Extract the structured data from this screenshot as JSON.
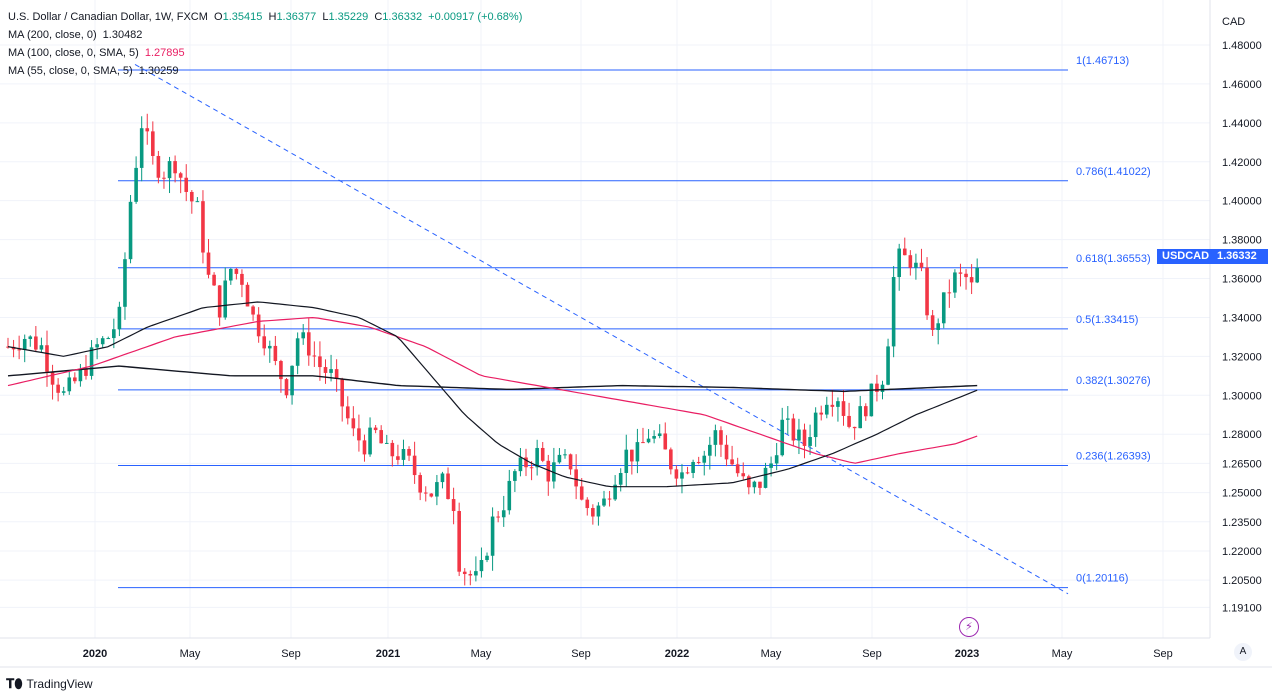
{
  "header": {
    "symbol_title": "U.S. Dollar / Canadian Dollar, 1W, FXCM",
    "ohlc": [
      {
        "label": "O",
        "value": "1.35415"
      },
      {
        "label": "H",
        "value": "1.36377"
      },
      {
        "label": "L",
        "value": "1.35229"
      },
      {
        "label": "C",
        "value": "1.36332"
      }
    ],
    "change": "+0.00917 (+0.68%)",
    "ma_lines": [
      {
        "label": "MA (200, close, 0)",
        "value": "1.30482",
        "color": "#131722"
      },
      {
        "label": "MA (100, close, 0, SMA, 5)",
        "value": "1.27895",
        "color": "#e91e63"
      },
      {
        "label": "MA (55, close, 0, SMA, 5)",
        "value": "1.30259",
        "color": "#131722"
      }
    ]
  },
  "price_scale": {
    "currency": "CAD",
    "ticks": [
      "1.48000",
      "1.46000",
      "1.44000",
      "1.42000",
      "1.40000",
      "1.38000",
      "1.36000",
      "1.34000",
      "1.32000",
      "1.30000",
      "1.28000",
      "1.26500",
      "1.25000",
      "1.23500",
      "1.22000",
      "1.20500",
      "1.19100"
    ]
  },
  "time_scale": {
    "ticks": [
      "2020",
      "May",
      "Sep",
      "2021",
      "May",
      "Sep",
      "2022",
      "May",
      "Sep",
      "2023",
      "May",
      "Sep"
    ]
  },
  "last_price_tag": {
    "name": "USDCAD",
    "price": "1.36332"
  },
  "footer": {
    "brand": "TradingView",
    "corner_button": "A"
  },
  "colors": {
    "up": "#089981",
    "down": "#f23645",
    "fib": "#2962ff",
    "ma100": "#e91e63",
    "ma_dark": "#131722"
  },
  "chart_data": {
    "type": "candlestick",
    "title": "U.S. Dollar / Canadian Dollar, 1W, FXCM",
    "ylim": [
      1.185,
      1.49
    ],
    "fibonacci": [
      {
        "label": "1(1.46713)",
        "value": 1.46713
      },
      {
        "label": "0.786(1.41022)",
        "value": 1.41022
      },
      {
        "label": "0.618(1.36553)",
        "value": 1.36553
      },
      {
        "label": "0.5(1.33415)",
        "value": 1.33415
      },
      {
        "label": "0.382(1.30276)",
        "value": 1.30276
      },
      {
        "label": "0.236(1.26393)",
        "value": 1.26393
      },
      {
        "label": "0(1.20116)",
        "value": 1.20116
      }
    ],
    "trendline": {
      "from_week": 12,
      "from_value": 1.467,
      "to_week": 167,
      "to_value": 1.201
    },
    "price_path": [
      [
        0,
        1.325
      ],
      [
        3,
        1.33
      ],
      [
        6,
        1.325
      ],
      [
        8,
        1.31
      ],
      [
        10,
        1.3
      ],
      [
        13,
        1.31
      ],
      [
        16,
        1.325
      ],
      [
        18,
        1.33
      ],
      [
        20,
        1.34
      ],
      [
        22,
        1.4
      ],
      [
        24,
        1.44
      ],
      [
        26,
        1.42
      ],
      [
        28,
        1.415
      ],
      [
        30,
        1.42
      ],
      [
        32,
        1.405
      ],
      [
        34,
        1.395
      ],
      [
        36,
        1.36
      ],
      [
        38,
        1.345
      ],
      [
        40,
        1.365
      ],
      [
        42,
        1.36
      ],
      [
        44,
        1.34
      ],
      [
        46,
        1.33
      ],
      [
        48,
        1.315
      ],
      [
        50,
        1.305
      ],
      [
        52,
        1.33
      ],
      [
        54,
        1.325
      ],
      [
        56,
        1.315
      ],
      [
        58,
        1.31
      ],
      [
        60,
        1.295
      ],
      [
        62,
        1.28
      ],
      [
        64,
        1.275
      ],
      [
        66,
        1.28
      ],
      [
        68,
        1.27
      ],
      [
        70,
        1.27
      ],
      [
        72,
        1.265
      ],
      [
        74,
        1.255
      ],
      [
        76,
        1.25
      ],
      [
        78,
        1.255
      ],
      [
        80,
        1.245
      ],
      [
        81,
        1.215
      ],
      [
        82,
        1.21
      ],
      [
        84,
        1.205
      ],
      [
        85,
        1.21
      ],
      [
        87,
        1.235
      ],
      [
        89,
        1.245
      ],
      [
        91,
        1.26
      ],
      [
        93,
        1.265
      ],
      [
        95,
        1.27
      ],
      [
        97,
        1.26
      ],
      [
        99,
        1.265
      ],
      [
        101,
        1.265
      ],
      [
        103,
        1.245
      ],
      [
        105,
        1.24
      ],
      [
        107,
        1.245
      ],
      [
        109,
        1.26
      ],
      [
        111,
        1.27
      ],
      [
        113,
        1.27
      ],
      [
        115,
        1.28
      ],
      [
        117,
        1.275
      ],
      [
        119,
        1.265
      ],
      [
        121,
        1.26
      ],
      [
        123,
        1.27
      ],
      [
        125,
        1.27
      ],
      [
        127,
        1.28
      ],
      [
        129,
        1.27
      ],
      [
        131,
        1.26
      ],
      [
        133,
        1.25
      ],
      [
        135,
        1.255
      ],
      [
        137,
        1.265
      ],
      [
        139,
        1.285
      ],
      [
        141,
        1.28
      ],
      [
        143,
        1.275
      ],
      [
        145,
        1.29
      ],
      [
        147,
        1.3
      ],
      [
        149,
        1.3
      ],
      [
        151,
        1.285
      ],
      [
        153,
        1.29
      ],
      [
        155,
        1.3
      ],
      [
        157,
        1.31
      ],
      [
        158,
        1.33
      ],
      [
        159,
        1.36
      ],
      [
        160,
        1.37
      ],
      [
        162,
        1.37
      ],
      [
        164,
        1.36
      ],
      [
        165,
        1.345
      ],
      [
        166,
        1.33
      ],
      [
        167,
        1.34
      ],
      [
        169,
        1.355
      ],
      [
        170,
        1.36
      ],
      [
        172,
        1.36
      ],
      [
        173,
        1.355
      ],
      [
        174,
        1.3633
      ]
    ],
    "ma200": [
      [
        0,
        1.31
      ],
      [
        20,
        1.315
      ],
      [
        40,
        1.31
      ],
      [
        55,
        1.31
      ],
      [
        70,
        1.305
      ],
      [
        90,
        1.303
      ],
      [
        110,
        1.305
      ],
      [
        130,
        1.304
      ],
      [
        150,
        1.302
      ],
      [
        174,
        1.305
      ]
    ],
    "ma100": [
      [
        0,
        1.305
      ],
      [
        15,
        1.315
      ],
      [
        30,
        1.33
      ],
      [
        45,
        1.338
      ],
      [
        55,
        1.34
      ],
      [
        65,
        1.335
      ],
      [
        75,
        1.325
      ],
      [
        85,
        1.31
      ],
      [
        95,
        1.305
      ],
      [
        105,
        1.3
      ],
      [
        115,
        1.295
      ],
      [
        125,
        1.29
      ],
      [
        135,
        1.28
      ],
      [
        145,
        1.27
      ],
      [
        152,
        1.265
      ],
      [
        160,
        1.27
      ],
      [
        170,
        1.275
      ],
      [
        174,
        1.279
      ]
    ],
    "ma55": [
      [
        0,
        1.325
      ],
      [
        10,
        1.32
      ],
      [
        18,
        1.325
      ],
      [
        25,
        1.335
      ],
      [
        35,
        1.345
      ],
      [
        45,
        1.348
      ],
      [
        55,
        1.345
      ],
      [
        63,
        1.34
      ],
      [
        70,
        1.33
      ],
      [
        76,
        1.31
      ],
      [
        82,
        1.29
      ],
      [
        88,
        1.275
      ],
      [
        94,
        1.265
      ],
      [
        100,
        1.258
      ],
      [
        108,
        1.253
      ],
      [
        118,
        1.253
      ],
      [
        130,
        1.255
      ],
      [
        140,
        1.262
      ],
      [
        148,
        1.27
      ],
      [
        156,
        1.28
      ],
      [
        163,
        1.29
      ],
      [
        170,
        1.298
      ],
      [
        174,
        1.3026
      ]
    ]
  }
}
